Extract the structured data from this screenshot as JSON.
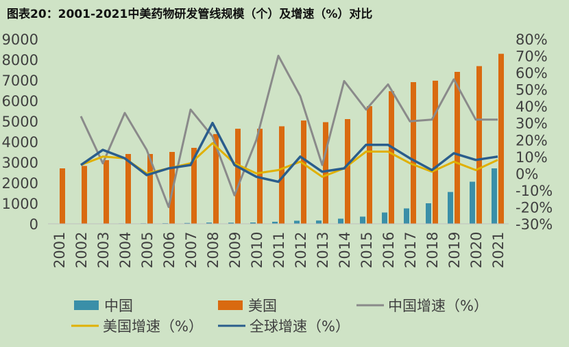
{
  "title": "图表20：2001-2021中美药物研发管线规模（个）及增速（%）对比",
  "chart_data": {
    "type": "bar",
    "categories": [
      "2001",
      "2002",
      "2003",
      "2004",
      "2005",
      "2006",
      "2007",
      "2008",
      "2009",
      "2010",
      "2011",
      "2012",
      "2013",
      "2014",
      "2015",
      "2016",
      "2017",
      "2018",
      "2019",
      "2020",
      "2021"
    ],
    "ylim_left": [
      0,
      9000
    ],
    "yticks_left": [
      "9000",
      "8000",
      "7000",
      "6000",
      "5000",
      "4000",
      "3000",
      "2000",
      "1000",
      "0"
    ],
    "ylim_right": [
      -30,
      80
    ],
    "yticks_right": [
      "80%",
      "70%",
      "60%",
      "50%",
      "40%",
      "30%",
      "20%",
      "10%",
      "0%",
      "-10%",
      "-20%",
      "-30%"
    ],
    "bar_series": [
      {
        "name": "中国",
        "color": "#3a8fa8",
        "values": [
          5,
          10,
          15,
          20,
          25,
          30,
          40,
          60,
          55,
          65,
          100,
          150,
          160,
          250,
          350,
          550,
          750,
          1000,
          1550,
          2050,
          2700
        ]
      },
      {
        "name": "美国",
        "color": "#d96a10",
        "values": [
          2700,
          2820,
          3100,
          3400,
          3400,
          3500,
          3700,
          4370,
          4630,
          4630,
          4750,
          5030,
          4950,
          5100,
          5730,
          6460,
          6900,
          6970,
          7400,
          7680,
          8280
        ]
      }
    ],
    "line_series": [
      {
        "name": "中国增速（%）",
        "color": "#8a8a8a",
        "values": [
          null,
          34,
          6,
          36,
          14,
          -20,
          38,
          22,
          -13,
          20,
          70,
          46,
          5,
          55,
          38,
          53,
          31,
          32,
          56,
          32,
          32
        ]
      },
      {
        "name": "美国增速（%）",
        "color": "#e0b000",
        "values": [
          null,
          5,
          10,
          9,
          0,
          3,
          6,
          18,
          6,
          0,
          2,
          7,
          -2,
          3,
          13,
          13,
          6,
          1,
          7,
          2,
          8
        ]
      },
      {
        "name": "全球增速（%）",
        "color": "#2a5d8c",
        "values": [
          null,
          5,
          14,
          9,
          -1,
          3,
          5,
          30,
          5,
          -2,
          -5,
          10,
          1,
          3,
          17,
          17,
          9,
          2,
          12,
          8,
          10
        ]
      }
    ],
    "legend": {
      "placement": "bottom"
    }
  }
}
